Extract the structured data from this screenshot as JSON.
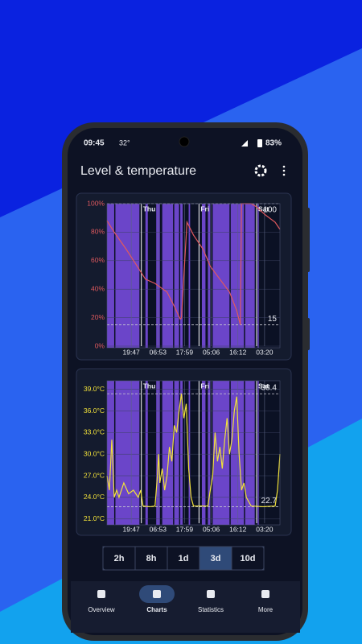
{
  "status_bar": {
    "time": "09:45",
    "temperature": "32°",
    "battery": "83%"
  },
  "app_bar": {
    "title": "Level & temperature"
  },
  "chart_data": [
    {
      "type": "line",
      "color": "#e0595e",
      "x": [
        0,
        3,
        8,
        13,
        16,
        20,
        25,
        28,
        30.5,
        31,
        33.3,
        36,
        40,
        43,
        47,
        51,
        54,
        55.5,
        56,
        60,
        62,
        66,
        70,
        72
      ],
      "values": [
        88,
        80,
        68,
        55,
        47,
        44,
        38,
        28,
        19,
        20,
        87,
        78,
        68,
        56,
        47,
        38,
        25,
        15,
        100,
        100,
        98,
        92,
        87,
        82
      ],
      "xlim": [
        0,
        72
      ],
      "ylim": [
        0,
        100
      ],
      "xticks": [
        {
          "value": 10.1,
          "label": "19:47"
        },
        {
          "value": 21.2,
          "label": "06:53"
        },
        {
          "value": 32.3,
          "label": "17:59"
        },
        {
          "value": 43.4,
          "label": "05:06"
        },
        {
          "value": 54.5,
          "label": "16:12"
        },
        {
          "value": 65.6,
          "label": "03:20"
        }
      ],
      "yticks": [
        {
          "value": 0,
          "label": "0%"
        },
        {
          "value": 20,
          "label": "20%"
        },
        {
          "value": 40,
          "label": "40%"
        },
        {
          "value": 60,
          "label": "60%"
        },
        {
          "value": 80,
          "label": "80%"
        },
        {
          "value": 100,
          "label": "100%"
        }
      ],
      "day_markers": [
        {
          "value": 14.3,
          "label": "Thu"
        },
        {
          "value": 38.3,
          "label": "Fri"
        },
        {
          "value": 62.3,
          "label": "Sat"
        }
      ],
      "reference_lines": [
        100,
        15
      ],
      "shaded_intervals": [
        [
          0,
          3
        ],
        [
          3.5,
          13.5
        ],
        [
          16,
          17
        ],
        [
          20.5,
          22
        ],
        [
          23,
          27.5
        ],
        [
          28,
          30
        ],
        [
          30.5,
          31.5
        ],
        [
          34,
          34.6
        ],
        [
          39.5,
          41
        ],
        [
          42,
          43
        ],
        [
          44,
          51
        ],
        [
          51.5,
          57
        ],
        [
          57.5,
          61.5
        ],
        [
          62.7,
          63.2
        ]
      ],
      "grid": true
    },
    {
      "type": "line",
      "color": "#f2e23a",
      "x": [
        0,
        1,
        2,
        3,
        4,
        5,
        7,
        9,
        11,
        13,
        14,
        15,
        18,
        20,
        21,
        21.5,
        22,
        23,
        24,
        25,
        26,
        27,
        28,
        29,
        30,
        31,
        32,
        33,
        34,
        35,
        36,
        39,
        42,
        43,
        44,
        45,
        46,
        47,
        48,
        49,
        50,
        51,
        52,
        53,
        54,
        55,
        56,
        57,
        58,
        60,
        65,
        70,
        71,
        72
      ],
      "values": [
        27,
        25,
        32,
        24,
        25,
        24,
        26,
        24.5,
        25,
        24,
        25,
        22.8,
        22.7,
        22.8,
        27,
        30,
        26,
        28,
        25,
        27,
        31,
        29,
        34,
        33,
        36,
        38.4,
        35,
        37,
        28,
        24,
        22.8,
        22.8,
        22.8,
        25,
        27,
        33,
        29,
        31,
        28,
        32,
        35,
        30,
        32,
        36,
        38,
        30,
        25,
        26,
        24,
        22.8,
        22.7,
        22.8,
        25,
        30
      ],
      "xlim": [
        0,
        72
      ],
      "ylim": [
        20.4,
        40.2
      ],
      "xticks": [
        {
          "value": 10.1,
          "label": "19:47"
        },
        {
          "value": 21.2,
          "label": "06:53"
        },
        {
          "value": 32.3,
          "label": "17:59"
        },
        {
          "value": 43.4,
          "label": "05:06"
        },
        {
          "value": 54.5,
          "label": "16:12"
        },
        {
          "value": 65.6,
          "label": "03:20"
        }
      ],
      "yticks": [
        {
          "value": 21,
          "label": "21.0°C"
        },
        {
          "value": 24,
          "label": "24.0°C"
        },
        {
          "value": 27,
          "label": "27.0°C"
        },
        {
          "value": 30,
          "label": "30.0°C"
        },
        {
          "value": 33,
          "label": "33.0°C"
        },
        {
          "value": 36,
          "label": "36.0°C"
        },
        {
          "value": 39,
          "label": "39.0°C"
        }
      ],
      "day_markers": [
        {
          "value": 14.3,
          "label": "Thu"
        },
        {
          "value": 38.3,
          "label": "Fri"
        },
        {
          "value": 62.3,
          "label": "Sat"
        }
      ],
      "reference_lines": [
        38.4,
        22.7
      ],
      "shaded_intervals": [
        [
          0,
          3
        ],
        [
          3.5,
          13.5
        ],
        [
          16,
          17
        ],
        [
          20.5,
          22
        ],
        [
          23,
          27.5
        ],
        [
          28,
          30
        ],
        [
          30.5,
          31.5
        ],
        [
          34,
          34.6
        ],
        [
          39.5,
          41
        ],
        [
          42,
          43
        ],
        [
          44,
          51
        ],
        [
          51.5,
          57
        ],
        [
          57.5,
          61.5
        ],
        [
          62.7,
          63.2
        ]
      ],
      "grid": true
    }
  ],
  "range_buttons": {
    "labels": [
      "2h",
      "8h",
      "1d",
      "3d",
      "10d"
    ],
    "selected_index": 3
  },
  "nav": {
    "items": [
      "Overview",
      "Charts",
      "Statistics",
      "More"
    ],
    "active_index": 1
  }
}
